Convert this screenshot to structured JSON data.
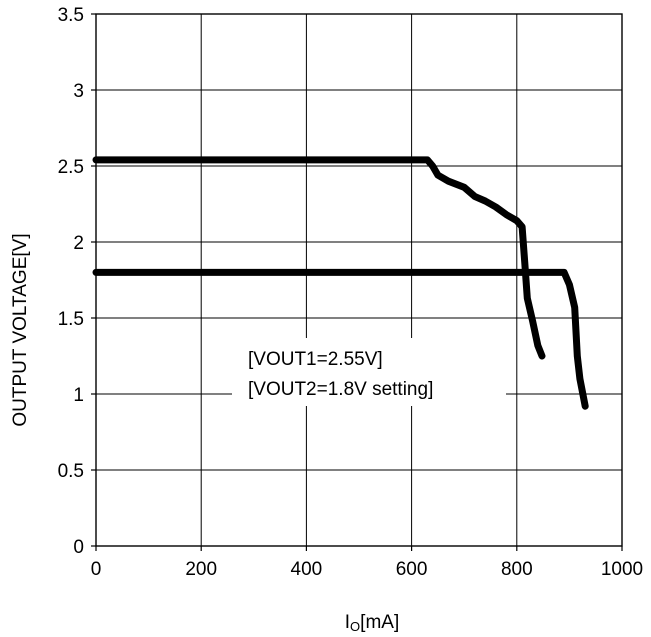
{
  "chart_data": {
    "type": "line",
    "title": "",
    "xlabel": {
      "main": "I",
      "sub": "O",
      "unit": "[mA]"
    },
    "ylabel": "OUTPUT VOLTAGE[V]",
    "xlim": [
      0,
      1000
    ],
    "ylim": [
      0,
      3.5
    ],
    "xticks": [
      "0",
      "200",
      "400",
      "600",
      "800",
      "1000"
    ],
    "yticks": [
      "0",
      "0.5",
      "1",
      "1.5",
      "2",
      "2.5",
      "3",
      "3.5"
    ],
    "grid": true,
    "annotation": [
      "[VOUT1=2.55V]",
      "[VOUT2=1.8V setting]"
    ],
    "series": [
      {
        "x": [
          0,
          200,
          400,
          600,
          630,
          640,
          650,
          670,
          700,
          720,
          740,
          760,
          780,
          800,
          810,
          815,
          820,
          830,
          840,
          848
        ],
        "y": [
          2.54,
          2.54,
          2.54,
          2.54,
          2.54,
          2.5,
          2.44,
          2.4,
          2.36,
          2.3,
          2.27,
          2.23,
          2.18,
          2.14,
          2.1,
          1.87,
          1.63,
          1.48,
          1.32,
          1.25
        ]
      },
      {
        "x": [
          0,
          200,
          400,
          600,
          800,
          890,
          900,
          910,
          915,
          920,
          930
        ],
        "y": [
          1.8,
          1.8,
          1.8,
          1.8,
          1.8,
          1.8,
          1.72,
          1.57,
          1.25,
          1.1,
          0.92
        ]
      }
    ],
    "style": {
      "line_color": "#000000",
      "grid_color": "#000000",
      "background": "#ffffff"
    }
  }
}
